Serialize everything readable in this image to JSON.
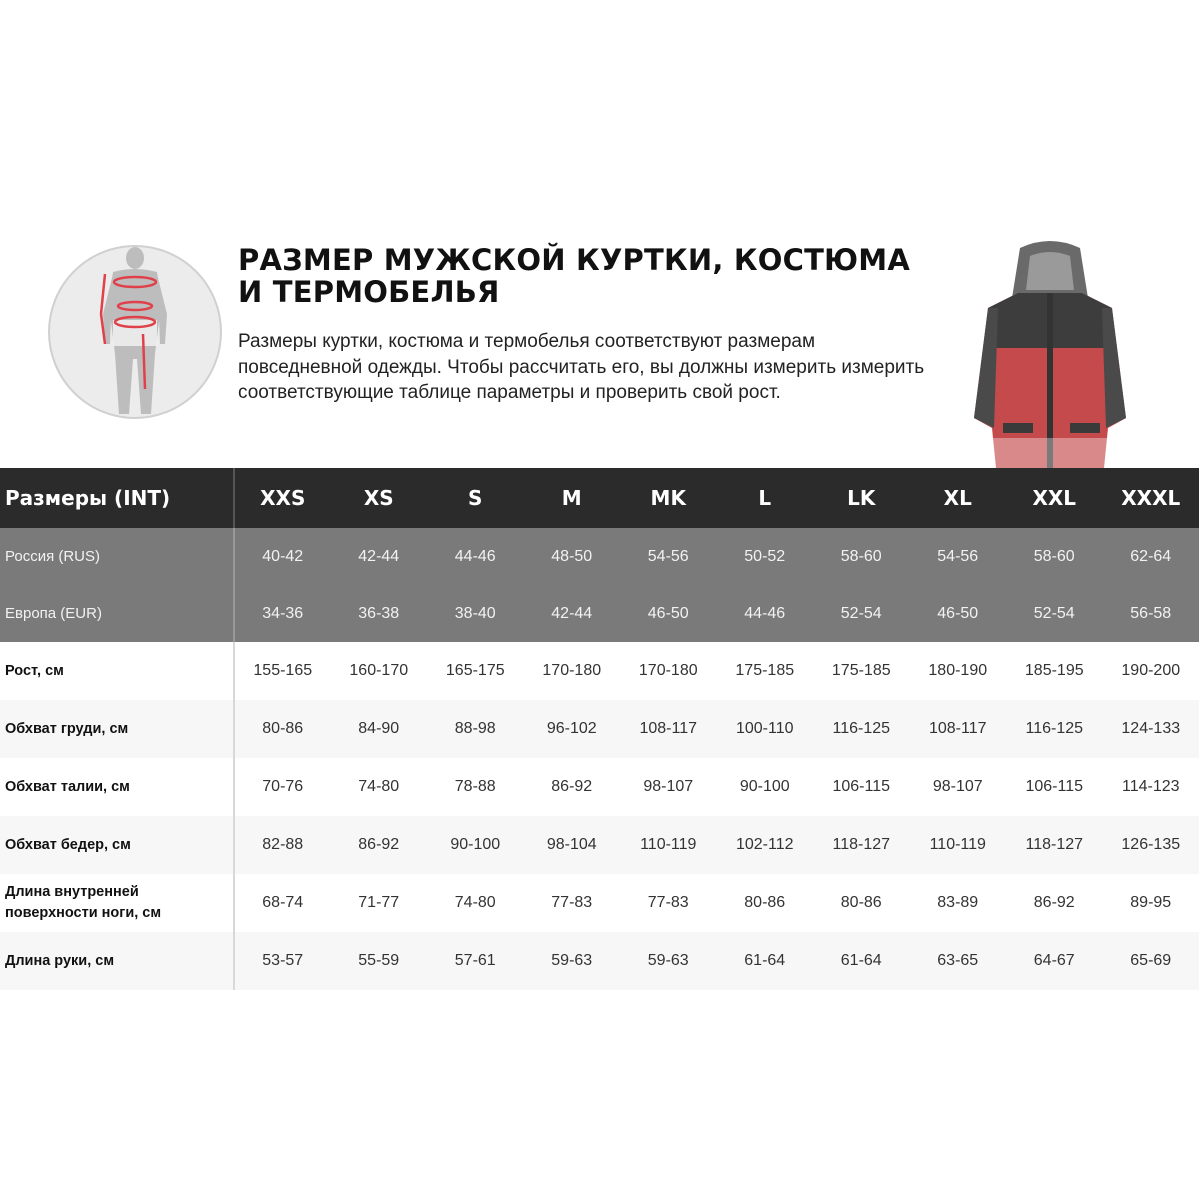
{
  "title": "РАЗМЕР МУЖСКОЙ КУРТКИ, КОСТЮМА И ТЕРМОБЕЛЬЯ",
  "description": "Размеры куртки, костюма и термобелья соответствуют размерам повседневной одежды. Чтобы рассчитать его, вы должны измерить измерить соответствующие таблице параметры и проверить свой рост.",
  "colors": {
    "header_bg": "#2b2b2b",
    "grey_rows_bg": "#7a7a7a",
    "accent_red": "#e0404a"
  },
  "table": {
    "header_label": "Размеры (INT)",
    "sizes": [
      "XXS",
      "XS",
      "S",
      "M",
      "MK",
      "L",
      "LK",
      "XL",
      "XXL",
      "XXXL"
    ],
    "grey_rows": [
      {
        "label": "Россия (RUS)",
        "values": [
          "40-42",
          "42-44",
          "44-46",
          "48-50",
          "54-56",
          "50-52",
          "58-60",
          "54-56",
          "58-60",
          "62-64"
        ]
      },
      {
        "label": "Европа (EUR)",
        "values": [
          "34-36",
          "36-38",
          "38-40",
          "42-44",
          "46-50",
          "44-46",
          "52-54",
          "46-50",
          "52-54",
          "56-58"
        ]
      }
    ],
    "rows": [
      {
        "label": "Рост, см",
        "values": [
          "155-165",
          "160-170",
          "165-175",
          "170-180",
          "170-180",
          "175-185",
          "175-185",
          "180-190",
          "185-195",
          "190-200"
        ]
      },
      {
        "label": "Обхват груди, см",
        "values": [
          "80-86",
          "84-90",
          "88-98",
          "96-102",
          "108-117",
          "100-110",
          "116-125",
          "108-117",
          "116-125",
          "124-133"
        ]
      },
      {
        "label": "Обхват талии, см",
        "values": [
          "70-76",
          "74-80",
          "78-88",
          "86-92",
          "98-107",
          "90-100",
          "106-115",
          "98-107",
          "106-115",
          "114-123"
        ]
      },
      {
        "label": "Обхват бедер, см",
        "values": [
          "82-88",
          "86-92",
          "90-100",
          "98-104",
          "110-119",
          "102-112",
          "118-127",
          "110-119",
          "118-127",
          "126-135"
        ]
      },
      {
        "label": "Длина внутренней поверхности ноги, см",
        "values": [
          "68-74",
          "71-77",
          "74-80",
          "77-83",
          "77-83",
          "80-86",
          "80-86",
          "83-89",
          "86-92",
          "89-95"
        ]
      },
      {
        "label": "Длина руки, см",
        "values": [
          "53-57",
          "55-59",
          "57-61",
          "59-63",
          "59-63",
          "61-64",
          "61-64",
          "63-65",
          "64-67",
          "65-69"
        ]
      }
    ]
  }
}
